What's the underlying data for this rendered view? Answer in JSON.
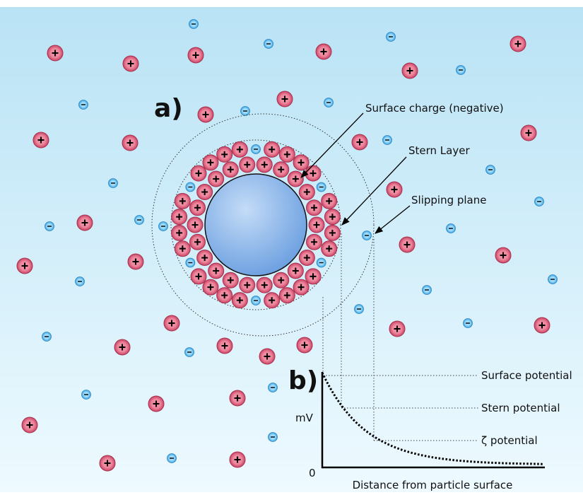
{
  "panel_a": {
    "label": "a)",
    "callouts": [
      "Surface charge (negative)",
      "Stern Layer",
      "Slipping plane"
    ]
  },
  "panel_b": {
    "label": "b)",
    "y_axis_label": "mV",
    "origin_label": "0",
    "x_axis_label": "Distance from particle surface",
    "levels": [
      "Surface potential",
      "Stern potential",
      "ζ potential"
    ]
  }
}
